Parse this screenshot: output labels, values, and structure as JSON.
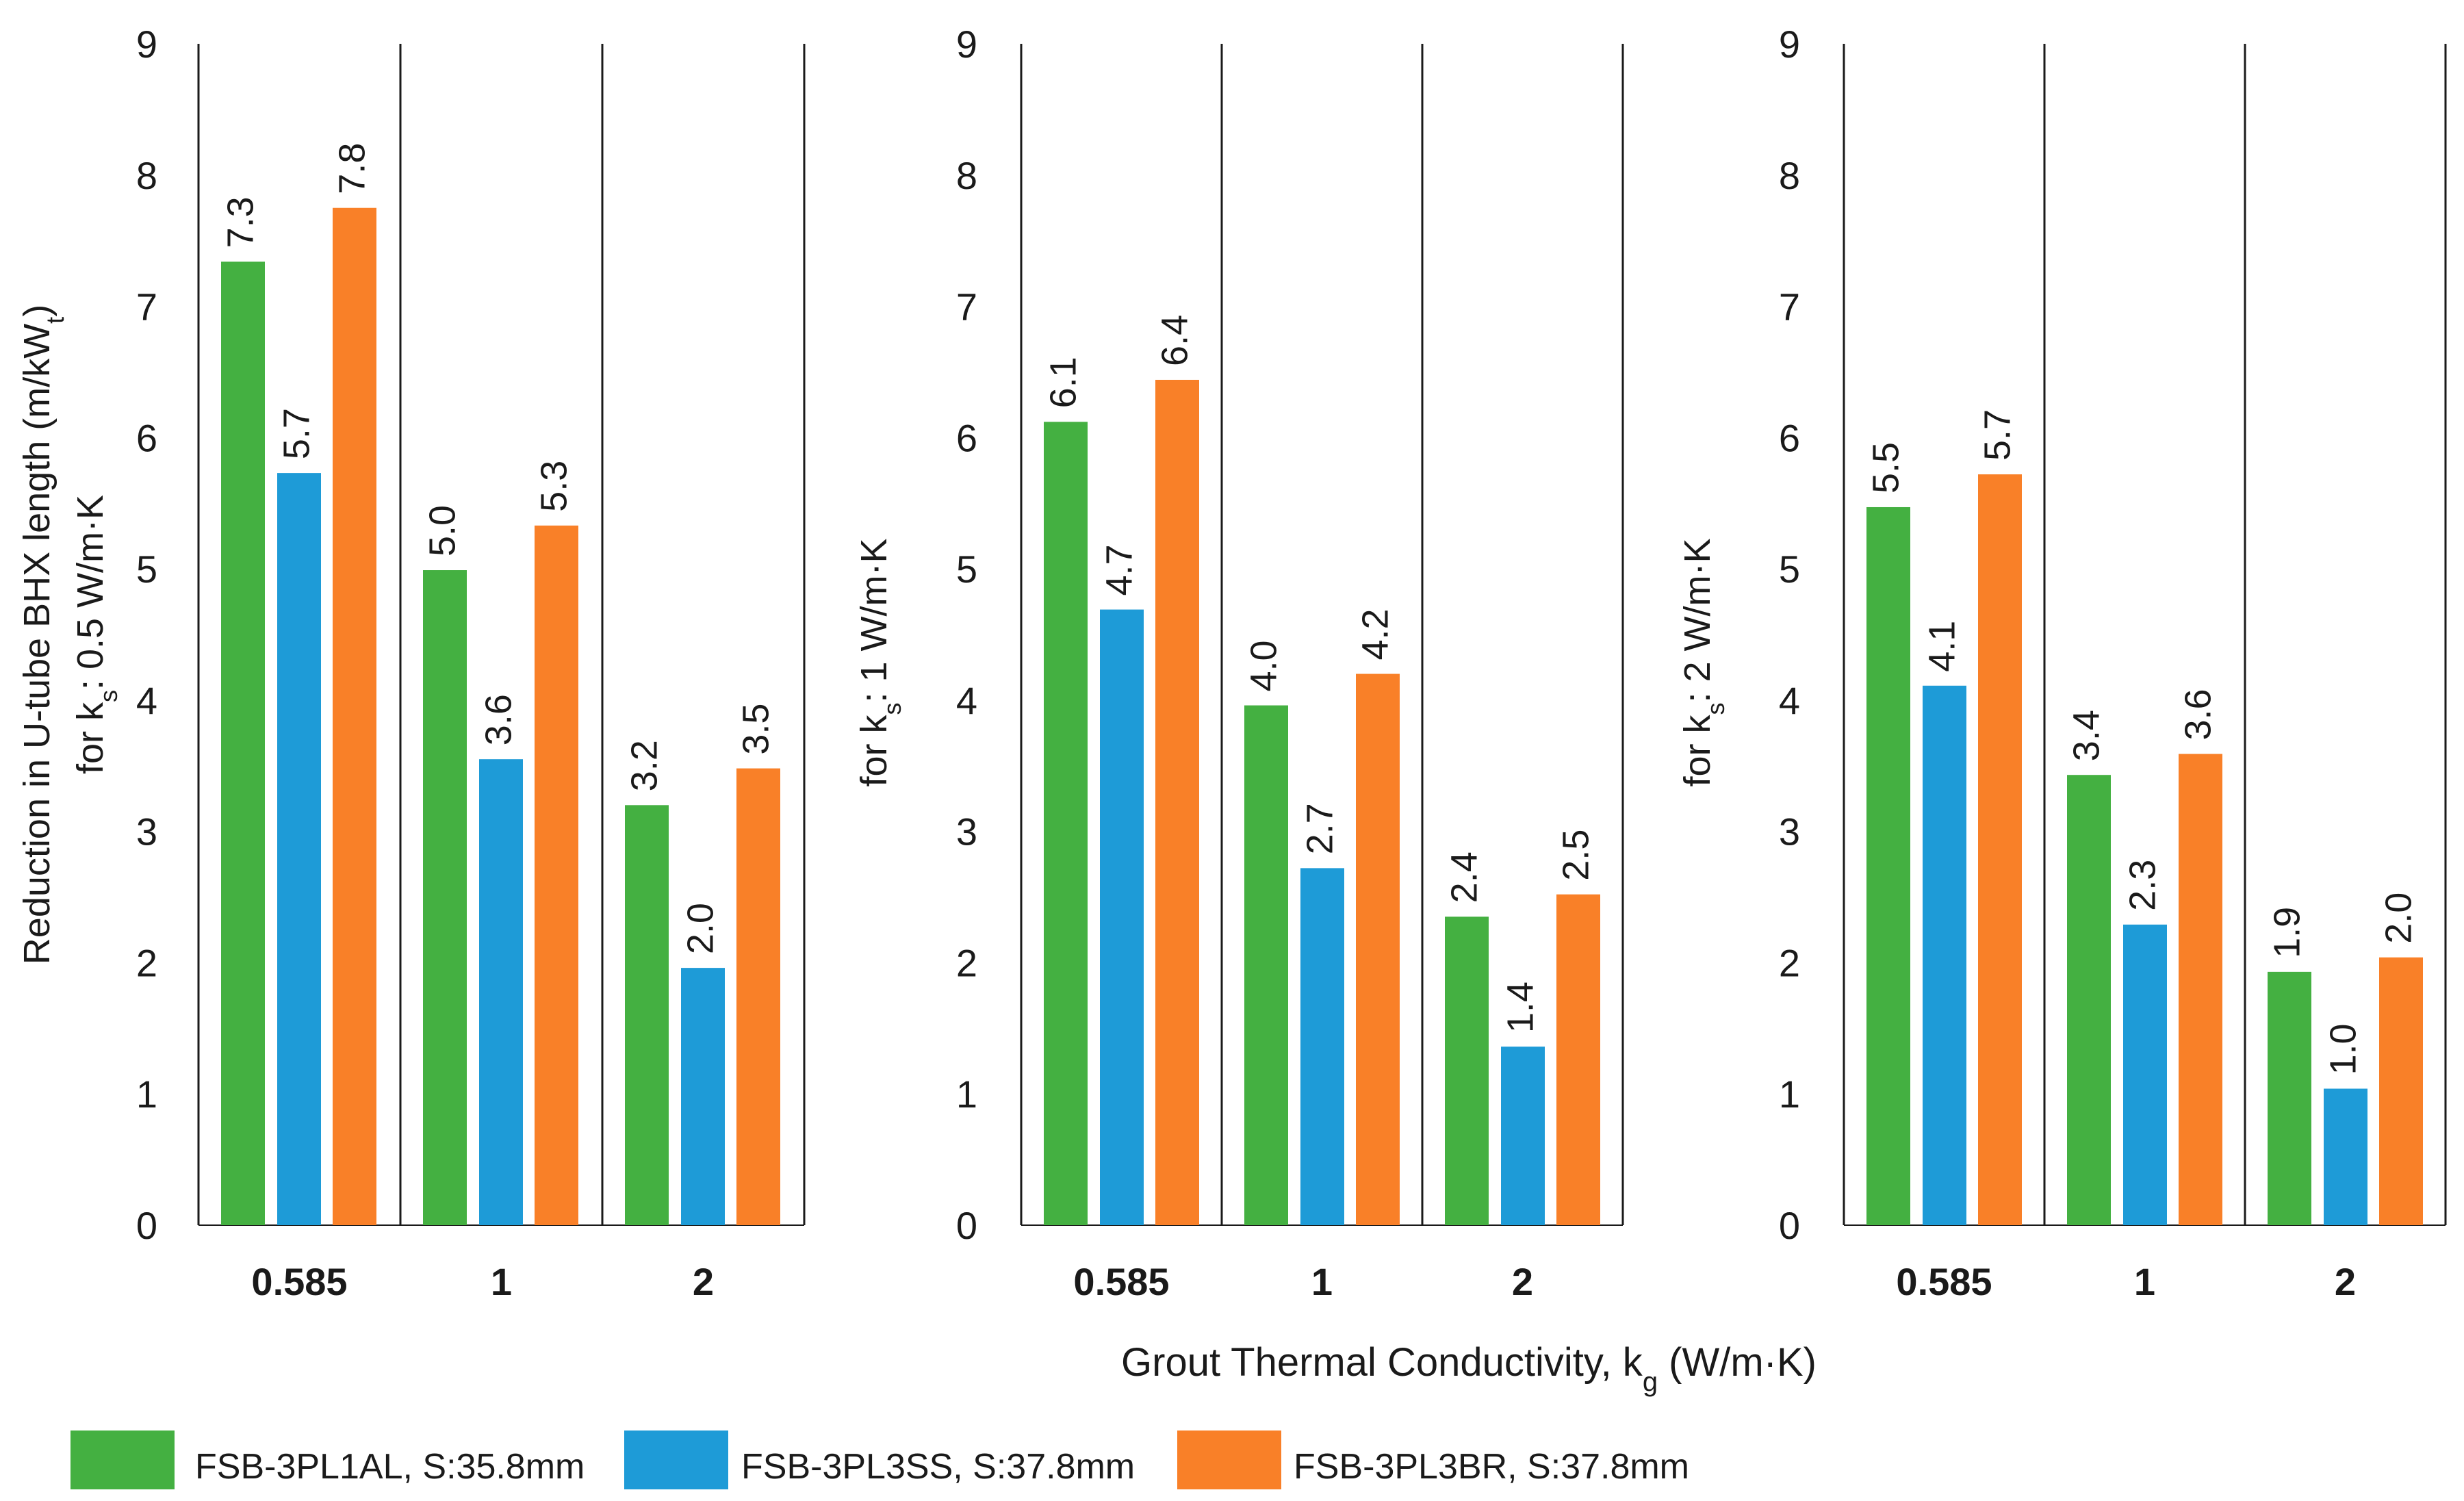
{
  "chart_data": [
    {
      "type": "bar",
      "ylabel_line1": "Reduction in U-tube BHX length (m/kW",
      "ylabel_line1_sub": "t",
      "ylabel_line1_end": ")",
      "ylabel_line2_pre": "for k",
      "ylabel_line2_sub": "s",
      "ylabel_line2_post": ": 0.5 W/m·K",
      "ylim": [
        0,
        9
      ],
      "yticks": [
        "0",
        "1",
        "2",
        "3",
        "4",
        "5",
        "6",
        "7",
        "8",
        "9"
      ],
      "categories": [
        "0.585",
        "1",
        "2"
      ],
      "series": [
        {
          "name": "FSB-3PL1AL, S:35.8mm",
          "values": [
            7.34,
            4.99,
            3.2
          ],
          "labels": [
            "7.3",
            "5.0",
            "3.2"
          ]
        },
        {
          "name": "FSB-3PL3SS, S:37.8mm",
          "values": [
            5.73,
            3.55,
            1.96
          ],
          "labels": [
            "5.7",
            "3.6",
            "2.0"
          ]
        },
        {
          "name": "FSB-3PL3BR, S:37.8mm",
          "values": [
            7.75,
            5.33,
            3.48
          ],
          "labels": [
            "7.8",
            "5.3",
            "3.5"
          ]
        }
      ]
    },
    {
      "type": "bar",
      "ylabel_line2_pre": "for k",
      "ylabel_line2_sub": "s",
      "ylabel_line2_post": ": 1 W/m·K",
      "ylim": [
        0,
        9
      ],
      "yticks": [
        "0",
        "1",
        "2",
        "3",
        "4",
        "5",
        "6",
        "7",
        "8",
        "9"
      ],
      "categories": [
        "0.585",
        "1",
        "2"
      ],
      "series": [
        {
          "name": "FSB-3PL1AL, S:35.8mm",
          "values": [
            6.12,
            3.96,
            2.35
          ],
          "labels": [
            "6.1",
            "4.0",
            "2.4"
          ]
        },
        {
          "name": "FSB-3PL3SS, S:37.8mm",
          "values": [
            4.69,
            2.72,
            1.36
          ],
          "labels": [
            "4.7",
            "2.7",
            "1.4"
          ]
        },
        {
          "name": "FSB-3PL3BR, S:37.8mm",
          "values": [
            6.44,
            4.2,
            2.52
          ],
          "labels": [
            "6.4",
            "4.2",
            "2.5"
          ]
        }
      ]
    },
    {
      "type": "bar",
      "ylabel_line2_pre": "for k",
      "ylabel_line2_sub": "s",
      "ylabel_line2_post": ": 2 W/m·K",
      "ylim": [
        0,
        9
      ],
      "yticks": [
        "0",
        "1",
        "2",
        "3",
        "4",
        "5",
        "6",
        "7",
        "8",
        "9"
      ],
      "categories": [
        "0.585",
        "1",
        "2"
      ],
      "series": [
        {
          "name": "FSB-3PL1AL, S:35.8mm",
          "values": [
            5.47,
            3.43,
            1.93
          ],
          "labels": [
            "5.5",
            "3.4",
            "1.9"
          ]
        },
        {
          "name": "FSB-3PL3SS, S:37.8mm",
          "values": [
            4.11,
            2.29,
            1.04
          ],
          "labels": [
            "4.1",
            "2.3",
            "1.0"
          ]
        },
        {
          "name": "FSB-3PL3BR, S:37.8mm",
          "values": [
            5.72,
            3.59,
            2.04
          ],
          "labels": [
            "5.7",
            "3.6",
            "2.0"
          ]
        }
      ]
    }
  ],
  "xlabel": {
    "pre": "Grout Thermal Conductivity,  k",
    "sub": "g",
    "post": " (W/m·K)"
  },
  "legend": [
    {
      "label": "FSB-3PL1AL, S:35.8mm",
      "color": "#44b041"
    },
    {
      "label": "FSB-3PL3SS, S:37.8mm",
      "color": "#1e9bd7"
    },
    {
      "label": "FSB-3PL3BR, S:37.8mm",
      "color": "#f98028"
    }
  ]
}
